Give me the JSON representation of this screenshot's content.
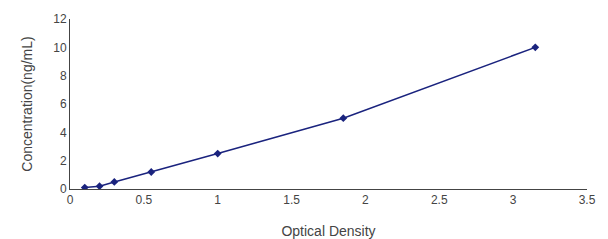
{
  "chart_data": {
    "type": "line",
    "x": [
      0.1,
      0.2,
      0.3,
      0.55,
      1.0,
      1.85,
      3.15
    ],
    "values": [
      0.1,
      0.2,
      0.5,
      1.2,
      2.5,
      5.0,
      10.0
    ],
    "color": "#1A237E",
    "marker": "diamond",
    "line_style": "solid",
    "xlabel": "Optical Density",
    "ylabel": "Concentration(ng/mL)",
    "xlim": [
      0,
      3.5
    ],
    "ylim": [
      0,
      12
    ],
    "xticks": [
      0,
      0.5,
      1,
      1.5,
      2,
      2.5,
      3,
      3.5
    ],
    "yticks": [
      0,
      2,
      4,
      6,
      8,
      10,
      12
    ],
    "grid": false
  }
}
